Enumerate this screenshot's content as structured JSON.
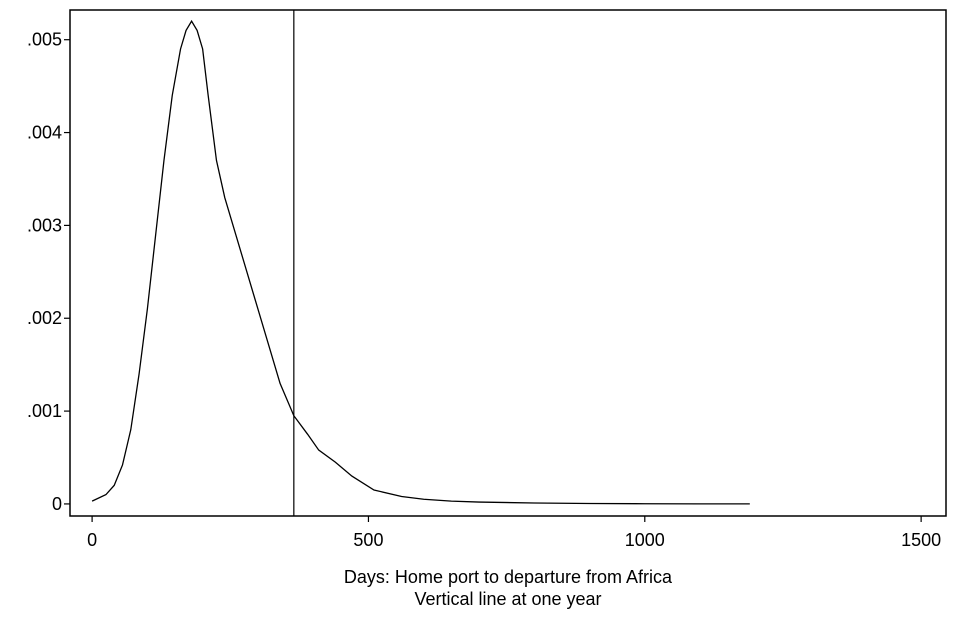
{
  "chart_data": {
    "type": "line",
    "title": "",
    "xlabel": "Days: Home port to departure from Africa",
    "note": "Vertical line at one year",
    "xlim": [
      -40,
      1545
    ],
    "ylim": [
      -0.00013,
      0.00532
    ],
    "xticks": [
      {
        "value": 0,
        "label": "0"
      },
      {
        "value": 500,
        "label": "500"
      },
      {
        "value": 1000,
        "label": "1000"
      },
      {
        "value": 1500,
        "label": "1500"
      }
    ],
    "yticks": [
      {
        "value": 0,
        "label": "0"
      },
      {
        "value": 0.001,
        "label": ".001"
      },
      {
        "value": 0.002,
        "label": ".002"
      },
      {
        "value": 0.003,
        "label": ".003"
      },
      {
        "value": 0.004,
        "label": ".004"
      },
      {
        "value": 0.005,
        "label": ".005"
      }
    ],
    "grid": false,
    "reference_line_x": 365,
    "series": [
      {
        "x": [
          0,
          25,
          40,
          55,
          70,
          85,
          100,
          115,
          130,
          145,
          160,
          170,
          180,
          190,
          200,
          210,
          225,
          240,
          260,
          280,
          300,
          320,
          340,
          365,
          390,
          410,
          440,
          470,
          510,
          560,
          600,
          650,
          700,
          800,
          900,
          1000,
          1100,
          1190
        ],
        "values": [
          3e-05,
          0.0001,
          0.0002,
          0.00042,
          0.0008,
          0.0014,
          0.0021,
          0.0029,
          0.0037,
          0.0044,
          0.0049,
          0.0051,
          0.0052,
          0.0051,
          0.0049,
          0.0044,
          0.0037,
          0.0033,
          0.0029,
          0.0025,
          0.0021,
          0.0017,
          0.0013,
          0.00095,
          0.00075,
          0.00058,
          0.00045,
          0.0003,
          0.00015,
          8e-05,
          5e-05,
          3e-05,
          2e-05,
          1e-05,
          5e-06,
          2e-06,
          1e-06,
          1e-06
        ]
      }
    ]
  }
}
